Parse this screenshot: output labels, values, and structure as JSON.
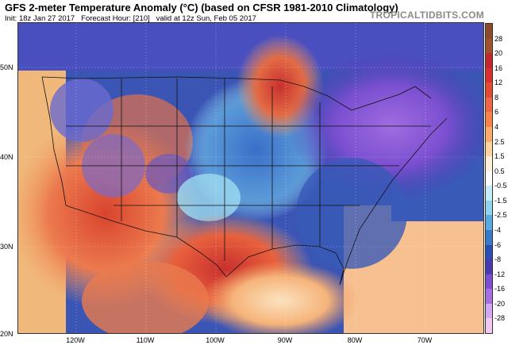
{
  "header": {
    "title": "GFS 2-meter Temperature Anomaly (°C) (based on CFSR 1981-2010 Climatology)",
    "init": "Init: 18z Jan 27 2017",
    "forecast_hour": "Forecast Hour: [210]",
    "valid": "valid at 12z Sun, Feb 05 2017",
    "brand": "TROPICALTIDBITS.COM"
  },
  "map": {
    "lat_labels": [
      "50N",
      "40N",
      "30N",
      "20N"
    ],
    "lon_labels": [
      "120W",
      "110W",
      "100W",
      "90W",
      "80W",
      "70W"
    ]
  },
  "colorbar": {
    "labels": [
      "28",
      "20",
      "16",
      "12",
      "8",
      "6",
      "4",
      "2.5",
      "1.5",
      "0.5",
      "-0.5",
      "-1.5",
      "-2.5",
      "-4",
      "-6",
      "-8",
      "-12",
      "-16",
      "-20",
      "-28"
    ],
    "colors": [
      "#8b4a2b",
      "#a0522d",
      "#c1272d",
      "#d7302f",
      "#e34a33",
      "#ef6548",
      "#f7834a",
      "#fbab6b",
      "#fdd49e",
      "#fef0d9",
      "#ffffff",
      "#c6ecf7",
      "#8fd3ee",
      "#5aa9e0",
      "#3a78c8",
      "#2a4fb0",
      "#4a3ab0",
      "#7b4fd0",
      "#a56fe0",
      "#d4a8f0",
      "#f0c8f0"
    ]
  },
  "colors": {
    "land_base": "#e88a5c",
    "ocean": "#2c3f9e",
    "cold_core": "#8a4fd6",
    "warm_core": "#c8302e"
  }
}
